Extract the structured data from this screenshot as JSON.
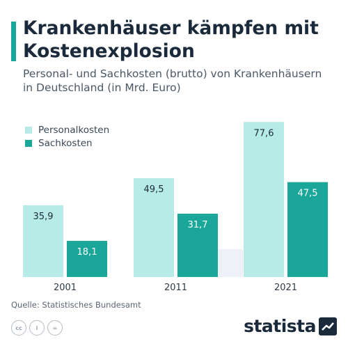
{
  "header": {
    "title": "Krankenhäuser kämpfen mit Kostenexplosion",
    "subtitle": "Personal- und Sachkosten (brutto) von Krankenhäusern in Deutschland (in Mrd. Euro)"
  },
  "colors": {
    "accent": "#1aa698",
    "personalkosten": "#b7ebe7",
    "sachkosten": "#1aa698",
    "shadow": "#eef1f8"
  },
  "legend": {
    "items": [
      {
        "label": "Personalkosten"
      },
      {
        "label": "Sachkosten"
      }
    ],
    "placement": "top-left"
  },
  "chart_data": {
    "type": "bar",
    "categories": [
      "2001",
      "2011",
      "2021"
    ],
    "series": [
      {
        "name": "Personalkosten",
        "values": [
          35.9,
          49.5,
          77.6
        ],
        "labels": [
          "35,9",
          "49,5",
          "77,6"
        ]
      },
      {
        "name": "Sachkosten",
        "values": [
          18.1,
          31.7,
          47.5
        ],
        "labels": [
          "18,1",
          "31,7",
          "47,5"
        ]
      }
    ],
    "title": "Krankenhäuser kämpfen mit Kostenexplosion",
    "subtitle": "Personal- und Sachkosten (brutto) von Krankenhäusern in Deutschland (in Mrd. Euro)",
    "ylim": [
      0,
      80
    ],
    "grid": false,
    "legend_position": "top-left"
  },
  "footer": {
    "source": "Quelle: Statistisches Bundesamt",
    "license_icons": [
      "cc-icon",
      "by-icon",
      "nd-icon"
    ],
    "license_glyphs": [
      "cc",
      "i",
      "="
    ],
    "brand": "statista"
  }
}
